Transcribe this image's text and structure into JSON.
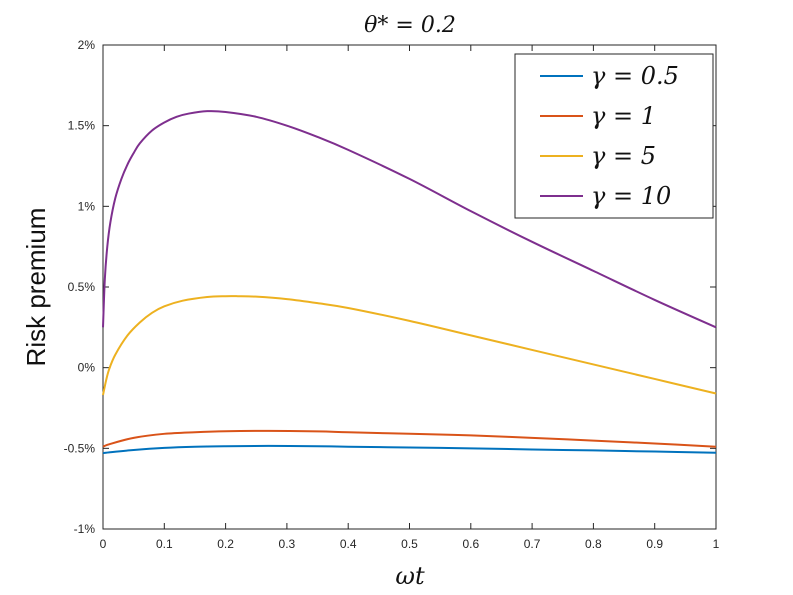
{
  "chart_data": {
    "type": "line",
    "title": "θ* = 0.2",
    "xlabel": "ωt",
    "ylabel": "Risk premium",
    "xlim": [
      0,
      1
    ],
    "ylim": [
      -1,
      2
    ],
    "xticks": [
      "0",
      "0.1",
      "0.2",
      "0.3",
      "0.4",
      "0.5",
      "0.6",
      "0.7",
      "0.8",
      "0.9",
      "1"
    ],
    "yticks": [
      "-1%",
      "-0.5%",
      "0%",
      "0.5%",
      "1%",
      "1.5%",
      "2%"
    ],
    "grid": false,
    "legend_position": "top-right",
    "series": [
      {
        "name": "γ = 0.5",
        "color": "#0072BD",
        "x": [
          0,
          0.01,
          0.05,
          0.1,
          0.15,
          0.2,
          0.27,
          0.35,
          0.4,
          0.5,
          0.6,
          0.7,
          0.8,
          0.9,
          1.0
        ],
        "y": [
          -0.53,
          -0.525,
          -0.51,
          -0.497,
          -0.49,
          -0.487,
          -0.485,
          -0.487,
          -0.49,
          -0.495,
          -0.5,
          -0.507,
          -0.513,
          -0.52,
          -0.527
        ]
      },
      {
        "name": "γ = 1",
        "color": "#D95319",
        "x": [
          0,
          0.01,
          0.05,
          0.1,
          0.15,
          0.2,
          0.27,
          0.35,
          0.4,
          0.5,
          0.6,
          0.7,
          0.8,
          0.9,
          1.0
        ],
        "y": [
          -0.49,
          -0.475,
          -0.435,
          -0.41,
          -0.4,
          -0.394,
          -0.392,
          -0.395,
          -0.4,
          -0.41,
          -0.42,
          -0.435,
          -0.452,
          -0.47,
          -0.49
        ]
      },
      {
        "name": "γ = 5",
        "color": "#EDB120",
        "x": [
          0,
          0.005,
          0.01,
          0.02,
          0.04,
          0.06,
          0.08,
          0.1,
          0.13,
          0.17,
          0.2,
          0.22,
          0.25,
          0.3,
          0.35,
          0.4,
          0.5,
          0.6,
          0.7,
          0.8,
          0.9,
          1.0
        ],
        "y": [
          -0.17,
          -0.08,
          -0.01,
          0.08,
          0.2,
          0.28,
          0.34,
          0.38,
          0.415,
          0.438,
          0.443,
          0.443,
          0.44,
          0.425,
          0.4,
          0.37,
          0.29,
          0.2,
          0.11,
          0.02,
          -0.07,
          -0.16
        ]
      },
      {
        "name": "γ = 10",
        "color": "#7E2F8E",
        "x": [
          0,
          0.003,
          0.007,
          0.012,
          0.02,
          0.03,
          0.04,
          0.05,
          0.06,
          0.08,
          0.1,
          0.12,
          0.14,
          0.17,
          0.2,
          0.25,
          0.3,
          0.35,
          0.4,
          0.5,
          0.6,
          0.7,
          0.8,
          0.9,
          1.0
        ],
        "y": [
          0.25,
          0.55,
          0.75,
          0.9,
          1.05,
          1.17,
          1.26,
          1.33,
          1.39,
          1.47,
          1.52,
          1.555,
          1.575,
          1.59,
          1.585,
          1.555,
          1.5,
          1.43,
          1.35,
          1.17,
          0.97,
          0.78,
          0.6,
          0.42,
          0.25
        ]
      }
    ]
  }
}
